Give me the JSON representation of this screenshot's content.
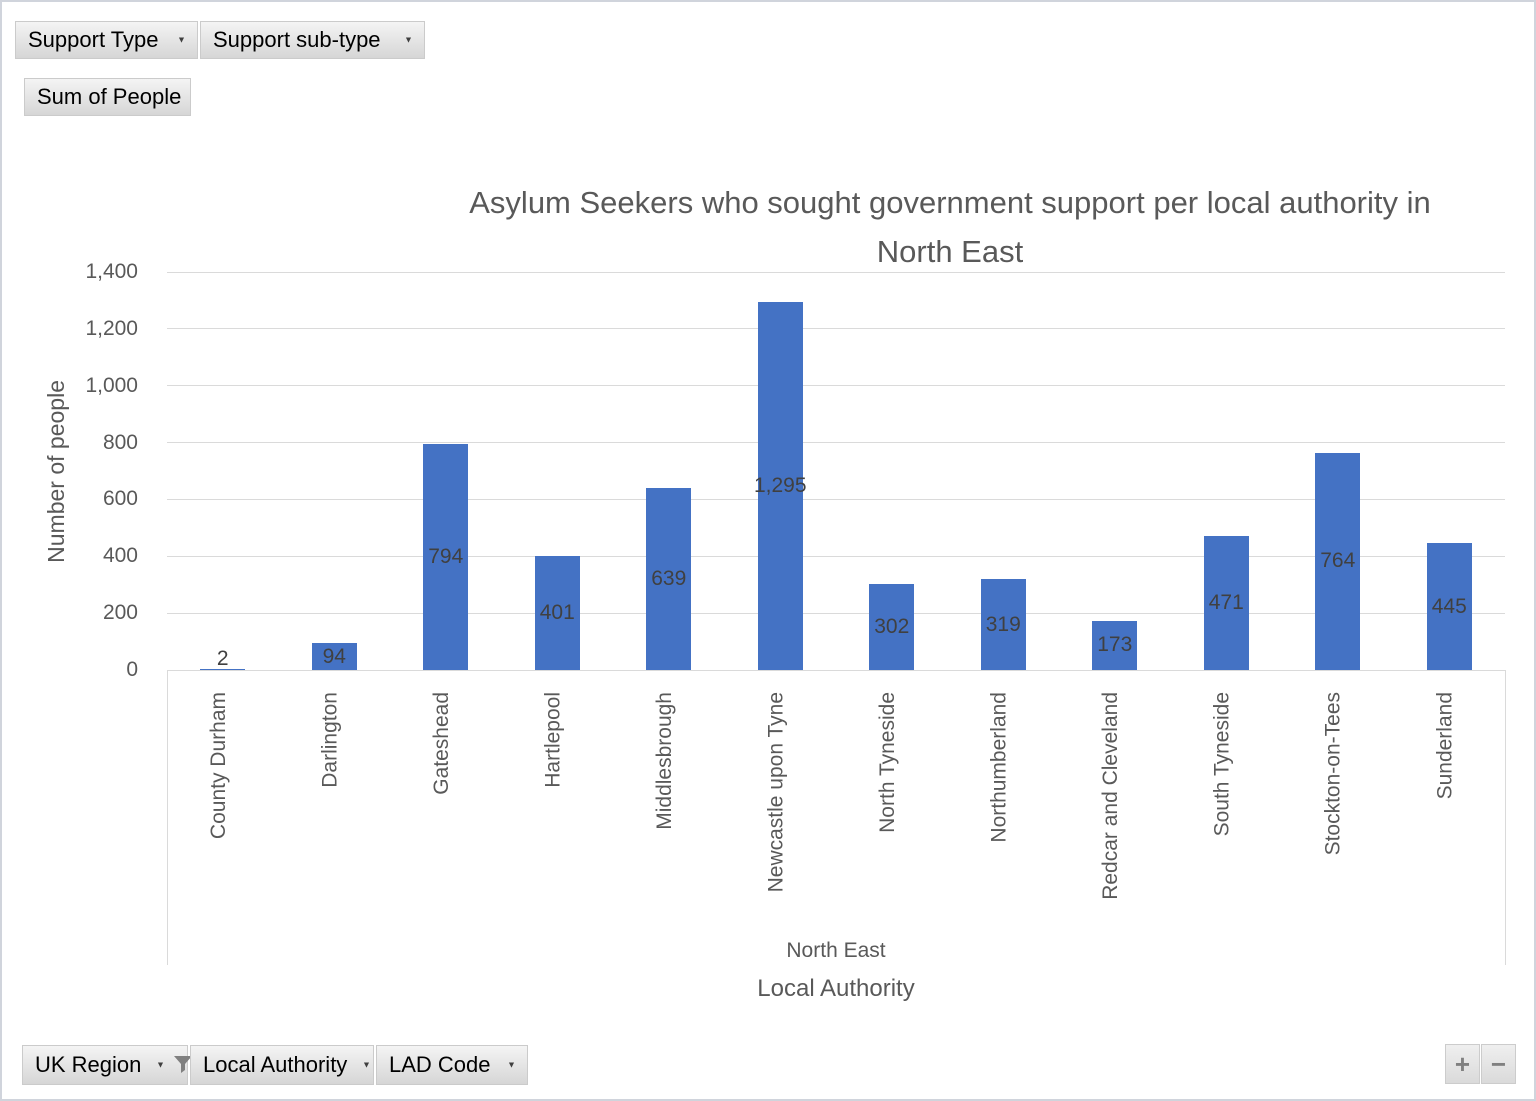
{
  "chart_data": {
    "type": "bar",
    "title": "Asylum Seekers who sought government support per local authority in North East",
    "title_lines": [
      "Asylum Seekers who sought government support per local authority in",
      "North East"
    ],
    "ylabel": "Number of people",
    "xlabel": "Local Authority",
    "group_label": "North East",
    "categories": [
      "County Durham",
      "Darlington",
      "Gateshead",
      "Hartlepool",
      "Middlesbrough",
      "Newcastle upon Tyne",
      "North Tyneside",
      "Northumberland",
      "Redcar and Cleveland",
      "South Tyneside",
      "Stockton-on-Tees",
      "Sunderland"
    ],
    "values": [
      2,
      94,
      794,
      401,
      639,
      1295,
      302,
      319,
      173,
      471,
      764,
      445
    ],
    "data_labels": [
      "2",
      "94",
      "794",
      "401",
      "639",
      "1,295",
      "302",
      "319",
      "173",
      "471",
      "764",
      "445"
    ],
    "ylim": [
      0,
      1400
    ],
    "ytick_step": 200,
    "ytick_labels": [
      "0",
      "200",
      "400",
      "600",
      "800",
      "1,000",
      "1,200",
      "1,400"
    ],
    "grid": true,
    "legend": "none",
    "colors": {
      "bar": "#4472C4",
      "gridline": "#DADADA",
      "axis_text": "#595959",
      "data_label": "#404040",
      "title": "#595959"
    }
  },
  "pivot_buttons": {
    "top": [
      {
        "label": "Support Type",
        "dropdown": true,
        "filtered": false
      },
      {
        "label": "Support sub-type",
        "dropdown": true,
        "filtered": false
      },
      {
        "label": "Sum of People",
        "dropdown": false,
        "filtered": false
      }
    ],
    "bottom": [
      {
        "label": "UK Region",
        "dropdown": true,
        "filtered": true
      },
      {
        "label": "Local Authority",
        "dropdown": true,
        "filtered": false
      },
      {
        "label": "LAD Code",
        "dropdown": true,
        "filtered": false
      }
    ],
    "expand": "+",
    "collapse": "−",
    "dropdown_icon": "▼"
  }
}
